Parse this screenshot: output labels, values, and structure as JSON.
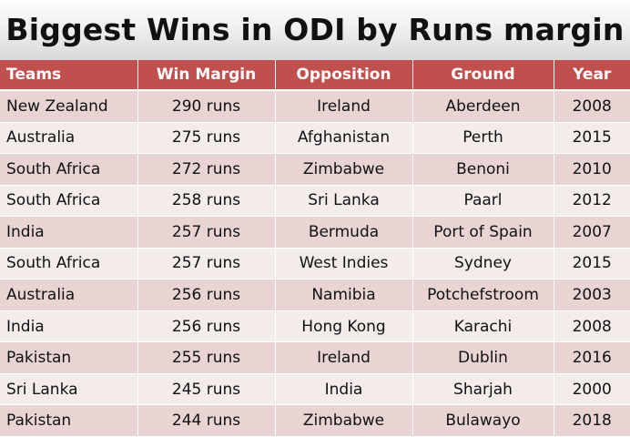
{
  "title": "Biggest Wins in ODI by Runs margin",
  "table": {
    "headers": [
      "Teams",
      "Win Margin",
      "Opposition",
      "Ground",
      "Year"
    ],
    "rows": [
      {
        "team": "New Zealand",
        "margin": "290 runs",
        "opposition": "Ireland",
        "ground": "Aberdeen",
        "year": "2008"
      },
      {
        "team": "Australia",
        "margin": "275 runs",
        "opposition": "Afghanistan",
        "ground": "Perth",
        "year": "2015"
      },
      {
        "team": "South Africa",
        "margin": "272 runs",
        "opposition": "Zimbabwe",
        "ground": "Benoni",
        "year": "2010"
      },
      {
        "team": "South Africa",
        "margin": "258 runs",
        "opposition": "Sri Lanka",
        "ground": "Paarl",
        "year": "2012"
      },
      {
        "team": "India",
        "margin": "257 runs",
        "opposition": "Bermuda",
        "ground": "Port of Spain",
        "year": "2007"
      },
      {
        "team": "South Africa",
        "margin": "257 runs",
        "opposition": "West Indies",
        "ground": "Sydney",
        "year": "2015"
      },
      {
        "team": "Australia",
        "margin": "256 runs",
        "opposition": "Namibia",
        "ground": "Potchefstroom",
        "year": "2003"
      },
      {
        "team": "India",
        "margin": "256 runs",
        "opposition": "Hong Kong",
        "ground": "Karachi",
        "year": "2008"
      },
      {
        "team": "Pakistan",
        "margin": "255 runs",
        "opposition": "Ireland",
        "ground": "Dublin",
        "year": "2016"
      },
      {
        "team": "Sri Lanka",
        "margin": "245 runs",
        "opposition": "India",
        "ground": "Sharjah",
        "year": "2000"
      },
      {
        "team": "Pakistan",
        "margin": "244 runs",
        "opposition": "Zimbabwe",
        "ground": "Bulawayo",
        "year": "2018"
      }
    ]
  },
  "colors": {
    "header_bg": "#c0504d",
    "row_odd": "#e9d4d4",
    "row_even": "#f4ebeb"
  }
}
